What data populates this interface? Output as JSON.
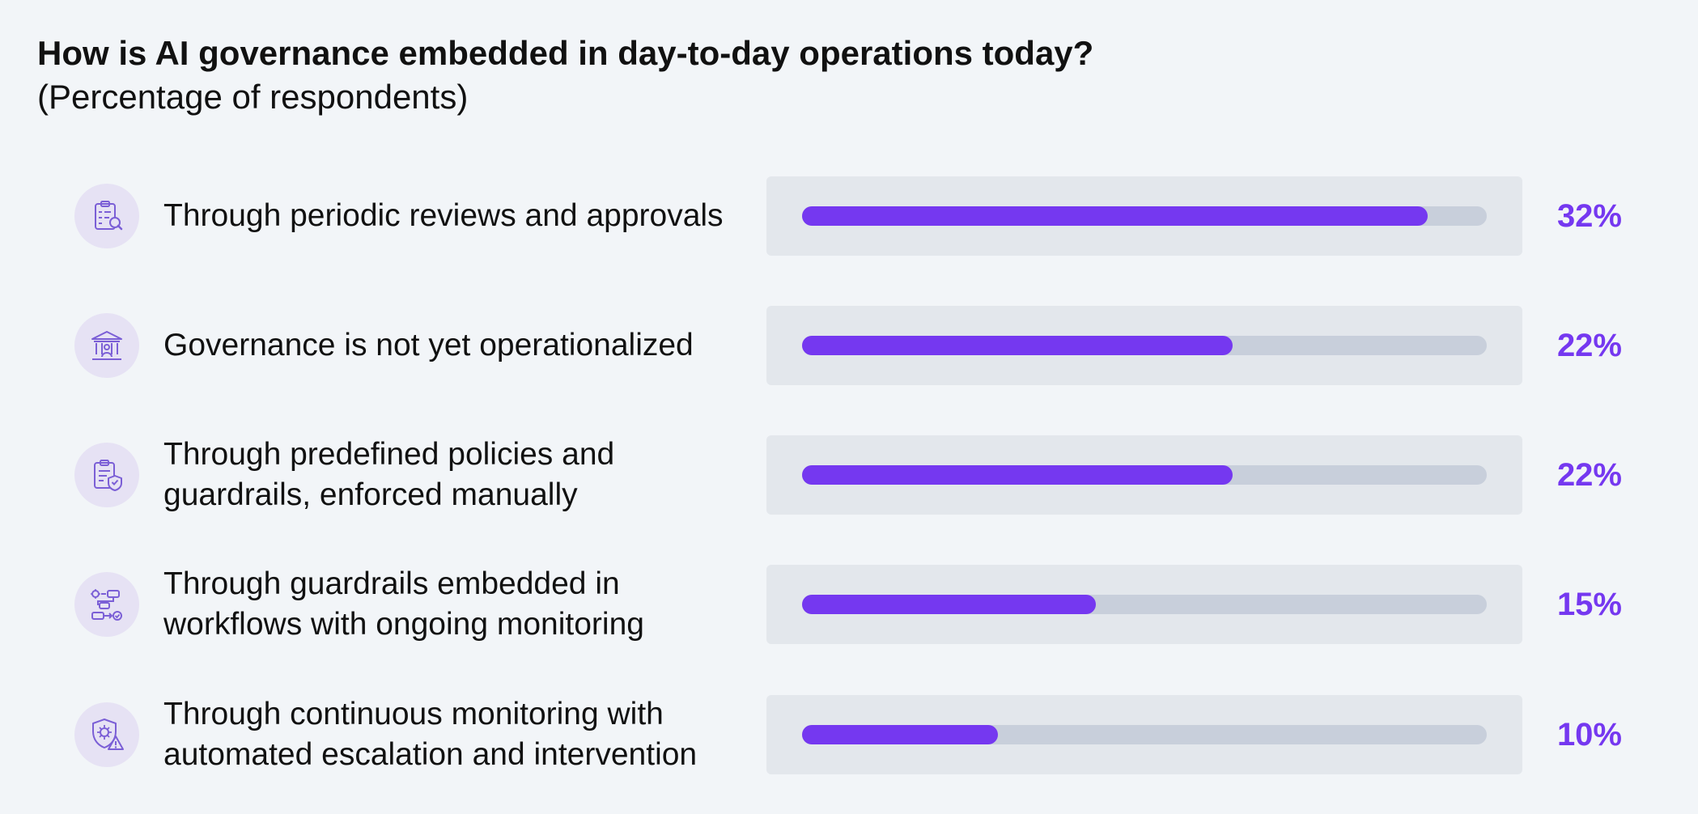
{
  "chart_data": {
    "type": "bar",
    "orientation": "horizontal",
    "title": "How is AI governance embedded in day-to-day operations today?",
    "subtitle": "(Percentage of respondents)",
    "categories": [
      "Through periodic reviews and approvals",
      "Governance is not yet operationalized",
      "Through predefined policies and guardrails, enforced manually",
      "Through guardrails embedded in workflows with ongoing monitoring",
      "Through continuous monitoring with automated escalation and intervention"
    ],
    "values": [
      32,
      22,
      22,
      15,
      10
    ],
    "value_labels": [
      "32%",
      "22%",
      "22%",
      "15%",
      "10%"
    ],
    "xlim": [
      0,
      35
    ],
    "grid": false,
    "colors": {
      "bar": "#7538f0",
      "track": "#c8cfdb",
      "track_box": "#e3e7ec",
      "icon_bg": "#e6e2f4",
      "icon": "#7b5fd6",
      "value_text": "#7538f0",
      "background": "#f2f5f8"
    },
    "icons": [
      "clipboard-search-icon",
      "institution-building-icon",
      "clipboard-shield-icon",
      "workflow-check-icon",
      "shield-gear-alert-icon"
    ]
  }
}
